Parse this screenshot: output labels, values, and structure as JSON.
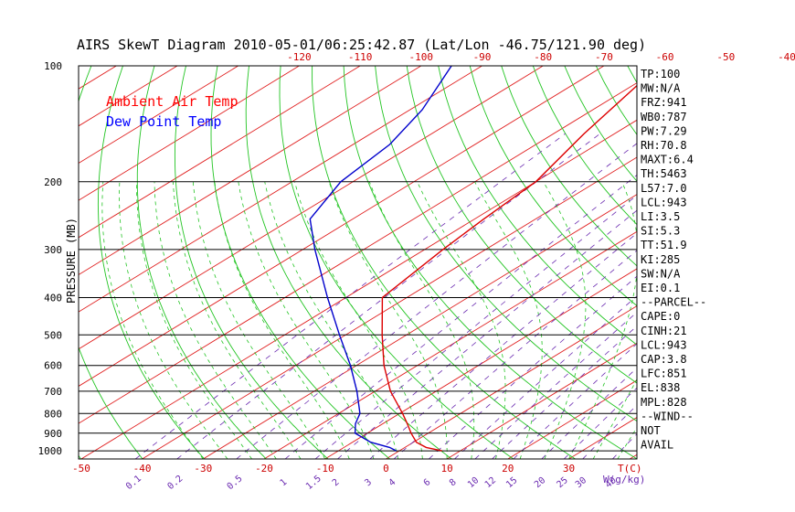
{
  "chart_data": {
    "type": "line",
    "chart_kind": "skew-T log-P diagram",
    "title": "AIRS SkewT Diagram 2010-05-01/06:25:42.87 (Lat/Lon -46.75/121.90 deg)",
    "ylabel": "PRESSURE (MB)",
    "x_unit_label": "T(C)",
    "mixing_ratio_unit_label": "W(g/kg)",
    "y_scale": "log",
    "ylim": [
      1050,
      100
    ],
    "pressure_ticks": [
      "100",
      "200",
      "300",
      "400",
      "500",
      "600",
      "700",
      "800",
      "900",
      "1000"
    ],
    "temp_ticks_bottom": [
      "-50",
      "-40",
      "-30",
      "-20",
      "-10",
      "0",
      "10",
      "20",
      "30"
    ],
    "temp_ticks_top": [
      "-120",
      "-110",
      "-100",
      "-90",
      "-80",
      "-70",
      "-60",
      "-50",
      "-40"
    ],
    "mixing_ratio_labels": [
      "0.1",
      "0.2",
      "0.5",
      "1",
      "1.5",
      "2",
      "3",
      "4",
      "6",
      "8",
      "10",
      "12",
      "15",
      "20",
      "25",
      "30",
      "40"
    ],
    "mixing_ratio_values": [
      0.1,
      0.2,
      0.5,
      1,
      1.5,
      2,
      3,
      4,
      6,
      8,
      10,
      12,
      15,
      20,
      25,
      30,
      40
    ],
    "legend": [
      {
        "name": "Ambient Air Temp",
        "color": "#ff0000"
      },
      {
        "name": "Dew Point Temp",
        "color": "#0000ff"
      }
    ],
    "series": [
      {
        "name": "Ambient Air Temp",
        "color": "#dd0000",
        "points": [
          {
            "p": 1000,
            "t": 7.0
          },
          {
            "p": 980,
            "t": 3.5
          },
          {
            "p": 950,
            "t": 0.5
          },
          {
            "p": 900,
            "t": -2.8
          },
          {
            "p": 850,
            "t": -6.0
          },
          {
            "p": 800,
            "t": -9.5
          },
          {
            "p": 700,
            "t": -17.5
          },
          {
            "p": 600,
            "t": -25.5
          },
          {
            "p": 500,
            "t": -34.0
          },
          {
            "p": 400,
            "t": -44.0
          },
          {
            "p": 300,
            "t": -47.0
          },
          {
            "p": 250,
            "t": -48.5
          },
          {
            "p": 200,
            "t": -50.0
          },
          {
            "p": 150,
            "t": -55.0
          },
          {
            "p": 100,
            "t": -61.0
          }
        ]
      },
      {
        "name": "Dew Point Temp",
        "color": "#0000cc",
        "points": [
          {
            "p": 1000,
            "t": -0.5
          },
          {
            "p": 980,
            "t": -2.5
          },
          {
            "p": 950,
            "t": -7.0
          },
          {
            "p": 900,
            "t": -12.0
          },
          {
            "p": 850,
            "t": -14.5
          },
          {
            "p": 800,
            "t": -16.5
          },
          {
            "p": 700,
            "t": -23.0
          },
          {
            "p": 600,
            "t": -31.0
          },
          {
            "p": 500,
            "t": -41.0
          },
          {
            "p": 400,
            "t": -53.0
          },
          {
            "p": 300,
            "t": -68.0
          },
          {
            "p": 250,
            "t": -77.0
          },
          {
            "p": 200,
            "t": -82.0
          },
          {
            "p": 160,
            "t": -84.0
          },
          {
            "p": 130,
            "t": -88.0
          },
          {
            "p": 100,
            "t": -95.0
          }
        ]
      }
    ],
    "side_panel": [
      "TP:100",
      "MW:N/A",
      "FRZ:941",
      "WB0:787",
      "PW:7.29",
      "RH:70.8",
      "MAXT:6.4",
      "TH:5463",
      "L57:7.0",
      "LCL:943",
      "LI:3.5",
      "SI:5.3",
      "TT:51.9",
      "KI:285",
      "SW:N/A",
      "EI:0.1",
      "--PARCEL--",
      "CAPE:0",
      "CINH:21",
      "LCL:943",
      "CAP:3.8",
      "LFC:851",
      "EL:838",
      "MPL:828",
      "--WIND--",
      "NOT",
      "AVAIL"
    ]
  }
}
